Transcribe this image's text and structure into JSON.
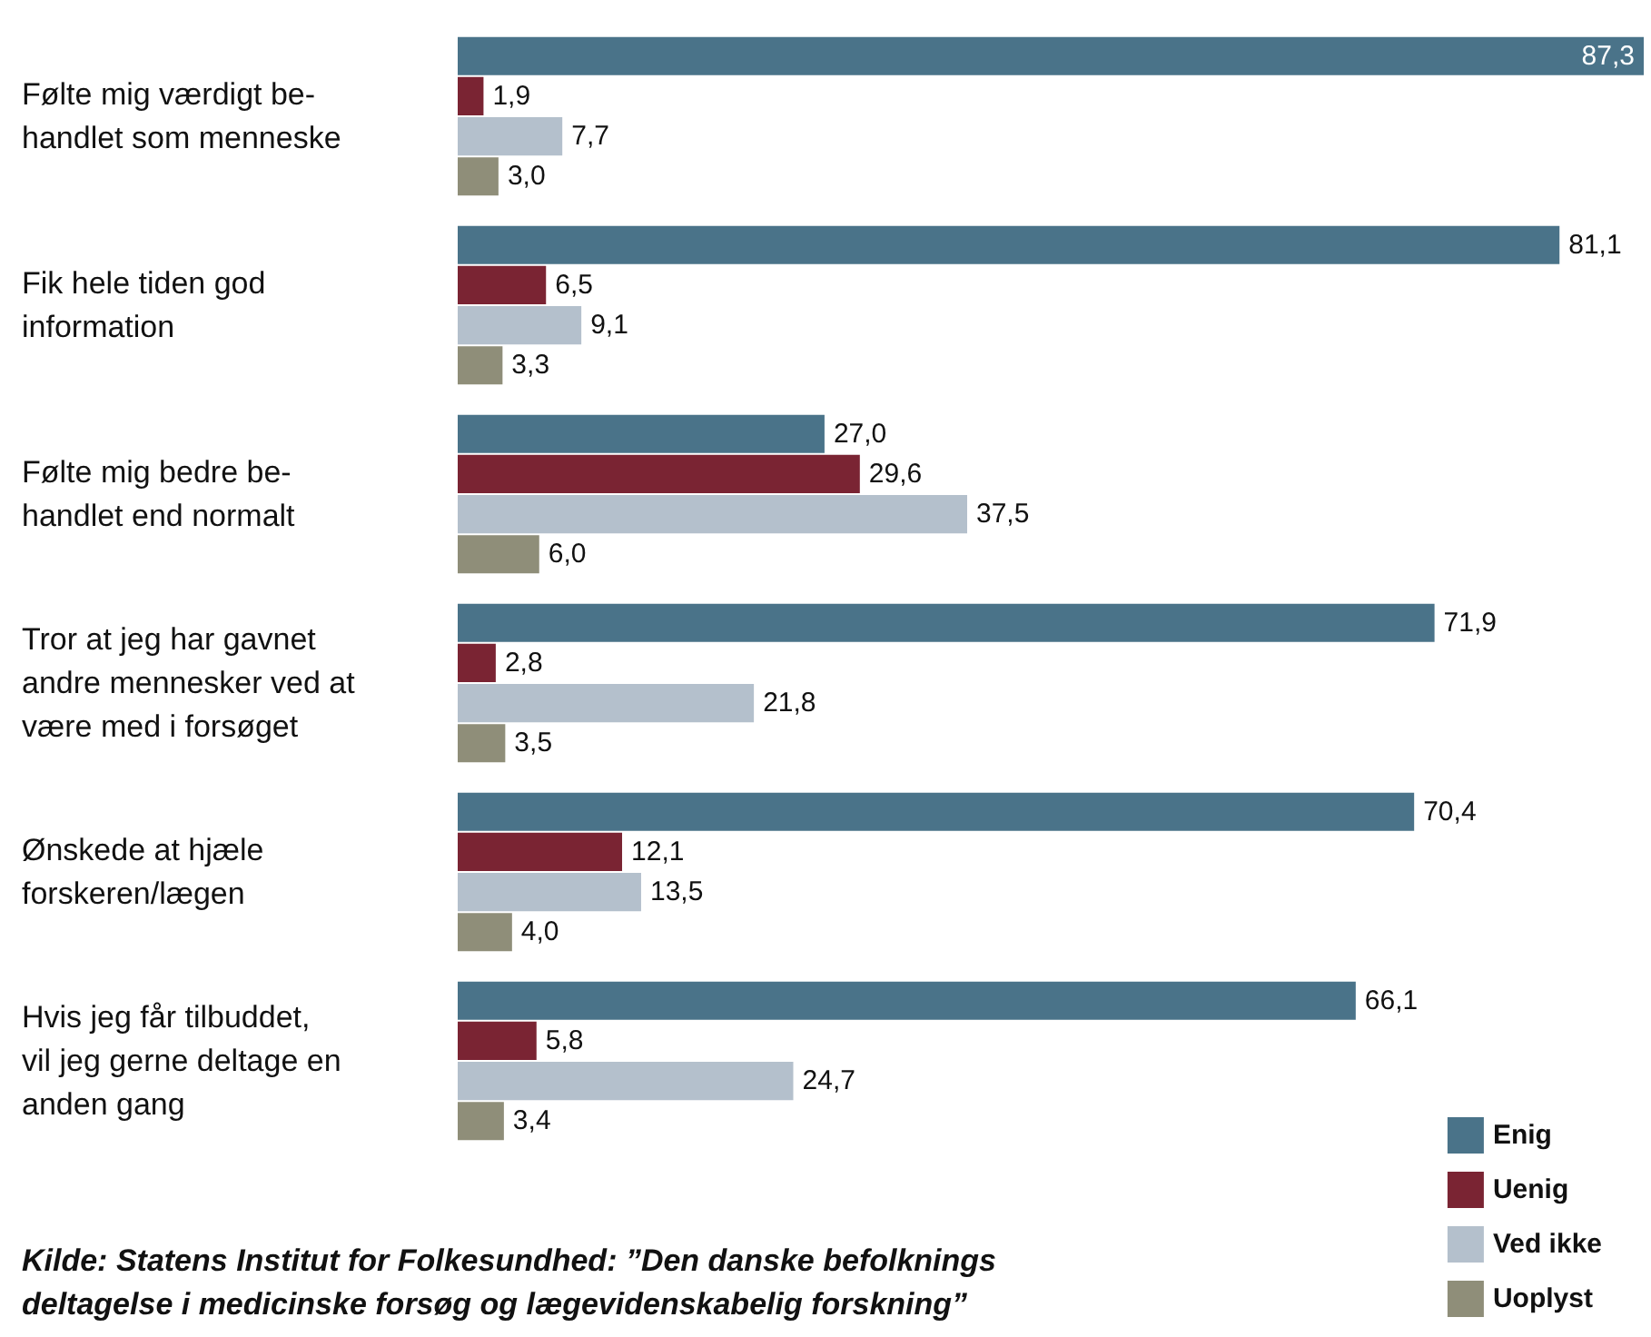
{
  "chart_data": {
    "type": "bar",
    "orientation": "horizontal",
    "legend": "bottom right",
    "categories": [
      "Følte mig værdigt be-\nhandlet som menneske",
      "Fik hele tiden god\ninformation",
      "Følte mig bedre be-\nhandlet end normalt",
      "Tror at jeg har gavnet\nandre mennesker ved at\nvære med i forsøget",
      "Ønskede at hjæle\nforskeren/lægen",
      "Hvis jeg får tilbuddet,\nvil jeg gerne deltage en\nanden gang"
    ],
    "series": [
      {
        "name": "Enig",
        "color": "#4a7389",
        "values": [
          87.3,
          81.1,
          27.0,
          71.9,
          70.4,
          66.1
        ],
        "value_labels": [
          "87,3",
          "81,1",
          "27,0",
          "71,9",
          "70,4",
          "66,1"
        ]
      },
      {
        "name": "Uenig",
        "color": "#7a2433",
        "values": [
          1.9,
          6.5,
          29.6,
          2.8,
          12.1,
          5.8
        ],
        "value_labels": [
          "1,9",
          "6,5",
          "29,6",
          "2,8",
          "12,1",
          "5,8"
        ]
      },
      {
        "name": "Ved ikke",
        "color": "#b4c0cc",
        "values": [
          7.7,
          9.1,
          37.5,
          21.8,
          13.5,
          24.7
        ],
        "value_labels": [
          "7,7",
          "9,1",
          "37,5",
          "21,8",
          "13,5",
          "24,7"
        ]
      },
      {
        "name": "Uoplyst",
        "color": "#8f8e79",
        "values": [
          3.0,
          3.3,
          6.0,
          3.5,
          4.0,
          3.4
        ],
        "value_labels": [
          "3,0",
          "3,3",
          "6,0",
          "3,5",
          "4,0",
          "3,4"
        ]
      }
    ],
    "annotations": [
      "Kilde: Statens Institut for Folkesundhed: ”Den danske befolknings\ndeltagelse i medicinske forsøg og lægevidenskabelig forskning”"
    ]
  }
}
